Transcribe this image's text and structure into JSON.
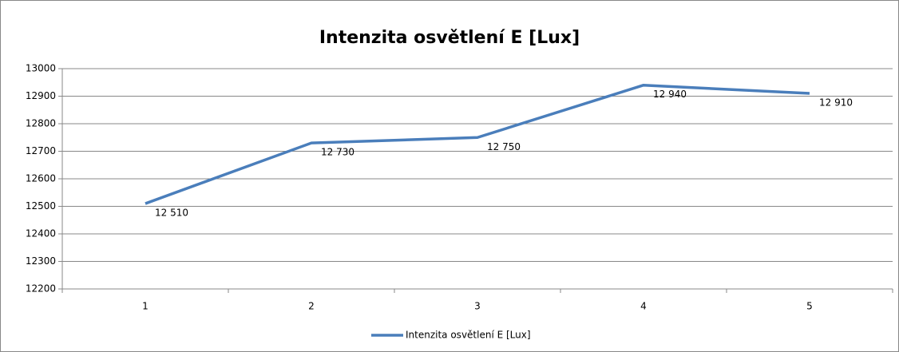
{
  "chart_data": {
    "type": "line",
    "title": "Intenzita osvětlení E [Lux]",
    "categories": [
      "1",
      "2",
      "3",
      "4",
      "5"
    ],
    "series": [
      {
        "name": "Intenzita osvětlení E [Lux]",
        "color": "#4a7ebb",
        "values": [
          12510,
          12730,
          12750,
          12940,
          12910
        ],
        "value_labels": [
          "12 510",
          "12 730",
          "12 750",
          "12 940",
          "12 910"
        ]
      }
    ],
    "ylim": [
      12200,
      13000
    ],
    "yticks": [
      12200,
      12300,
      12400,
      12500,
      12600,
      12700,
      12800,
      12900,
      13000
    ],
    "grid": true,
    "legend": "bottom"
  }
}
